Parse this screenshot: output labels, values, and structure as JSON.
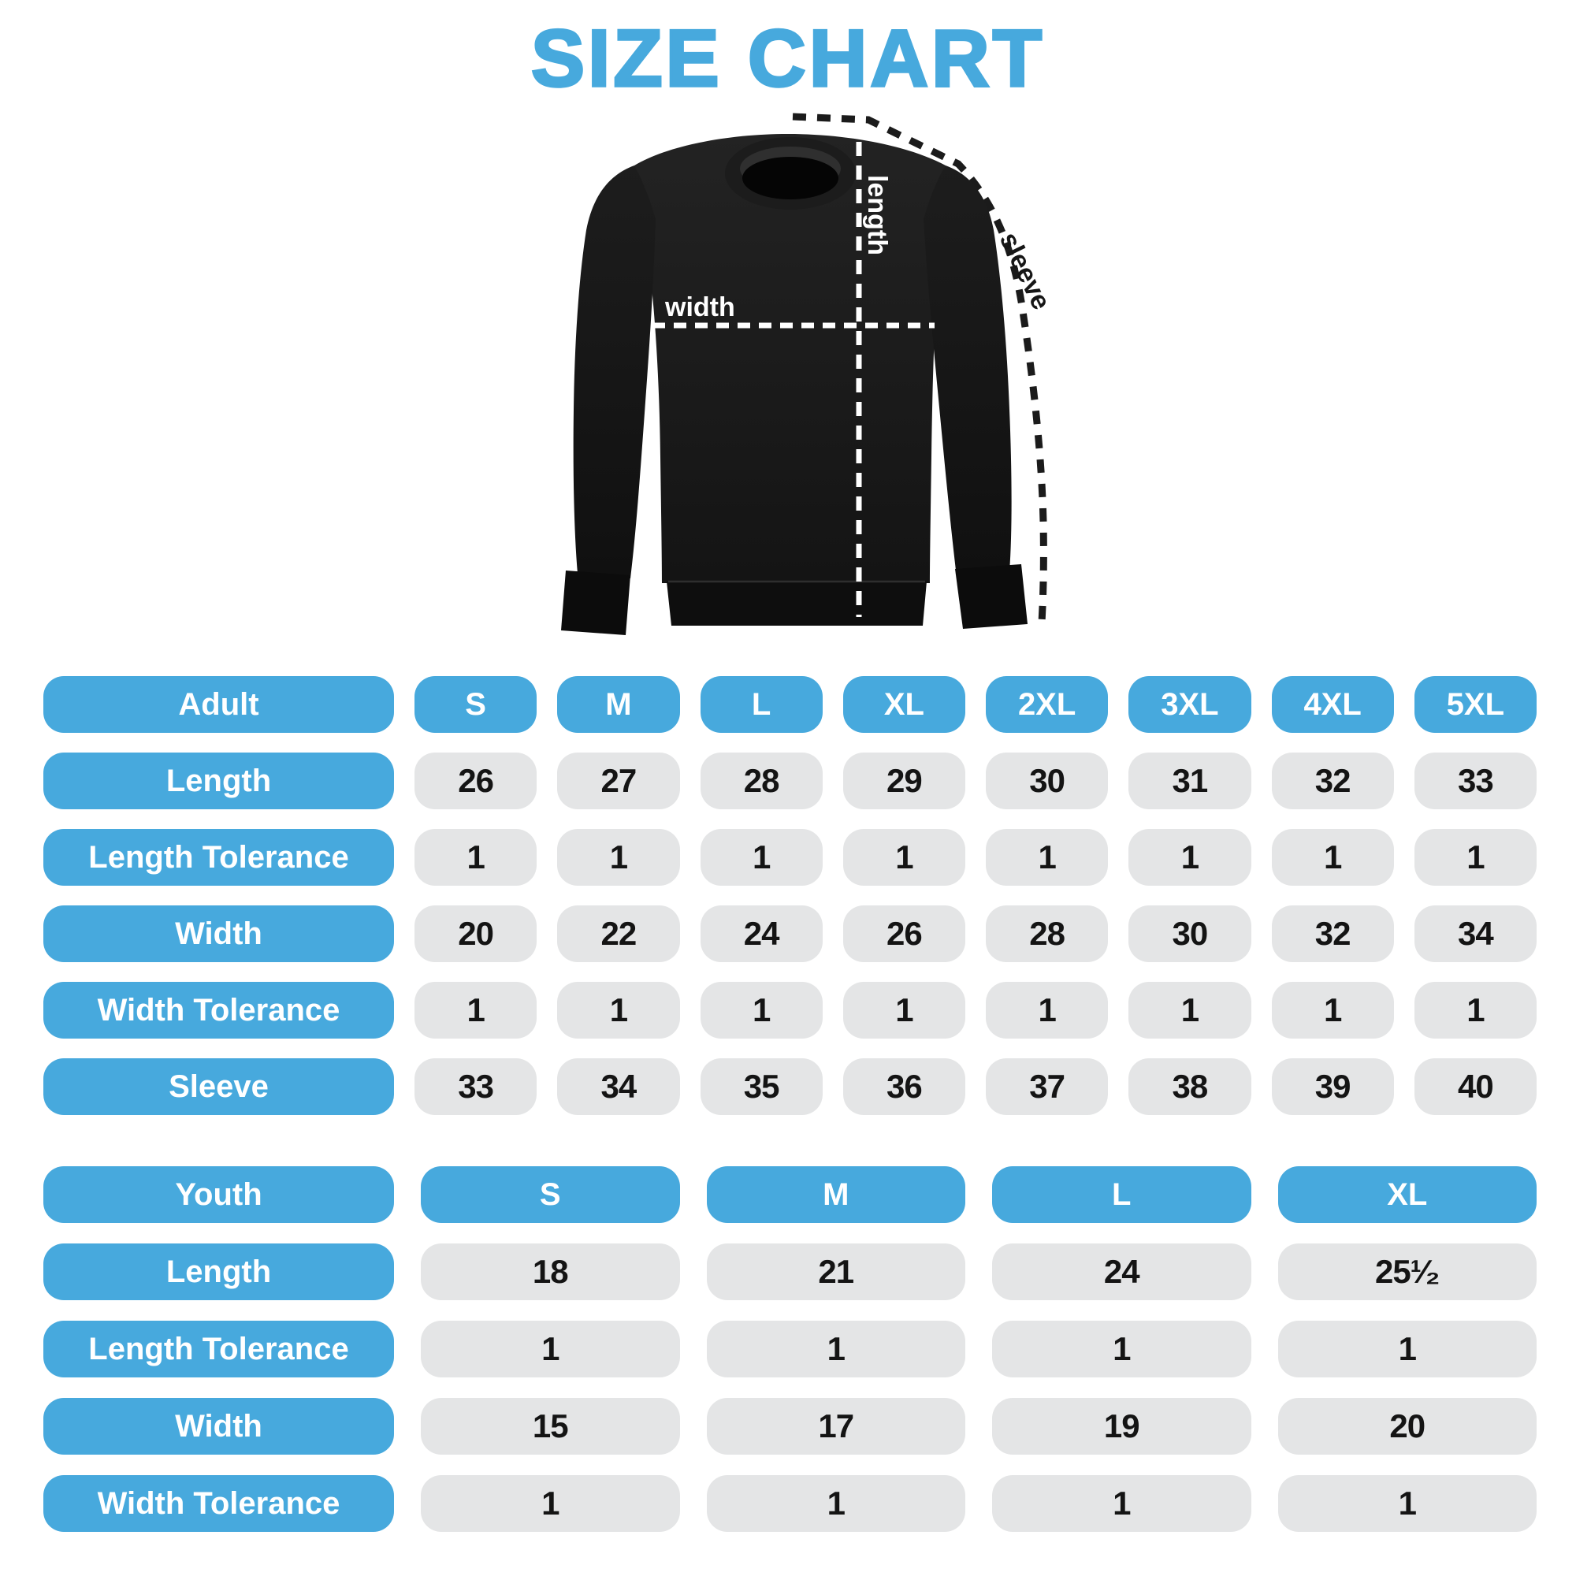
{
  "title": "SIZE CHART",
  "colors": {
    "accent_blue": "#47a9dd",
    "cell_gray": "#e4e5e6",
    "value_text": "#141414",
    "label_text": "#ffffff",
    "shirt_black": "#1a1a1a",
    "measure_line_white": "#ffffff",
    "measure_line_black": "#1b1b1b"
  },
  "diagram": {
    "length_label": "length",
    "width_label": "width",
    "sleeve_label": "sleeve"
  },
  "chart_data": [
    {
      "type": "table",
      "title": "Adult",
      "columns": [
        "Adult",
        "S",
        "M",
        "L",
        "XL",
        "2XL",
        "3XL",
        "4XL",
        "5XL"
      ],
      "rows": [
        [
          "Length",
          "26",
          "27",
          "28",
          "29",
          "30",
          "31",
          "32",
          "33"
        ],
        [
          "Length Tolerance",
          "1",
          "1",
          "1",
          "1",
          "1",
          "1",
          "1",
          "1"
        ],
        [
          "Width",
          "20",
          "22",
          "24",
          "26",
          "28",
          "30",
          "32",
          "34"
        ],
        [
          "Width Tolerance",
          "1",
          "1",
          "1",
          "1",
          "1",
          "1",
          "1",
          "1"
        ],
        [
          "Sleeve",
          "33",
          "34",
          "35",
          "36",
          "37",
          "38",
          "39",
          "40"
        ]
      ]
    },
    {
      "type": "table",
      "title": "Youth",
      "columns": [
        "Youth",
        "S",
        "M",
        "L",
        "XL"
      ],
      "rows": [
        [
          "Length",
          "18",
          "21",
          "24",
          "25¹⁄₂"
        ],
        [
          "Length Tolerance",
          "1",
          "1",
          "1",
          "1"
        ],
        [
          "Width",
          "15",
          "17",
          "19",
          "20"
        ],
        [
          "Width Tolerance",
          "1",
          "1",
          "1",
          "1"
        ]
      ]
    }
  ]
}
